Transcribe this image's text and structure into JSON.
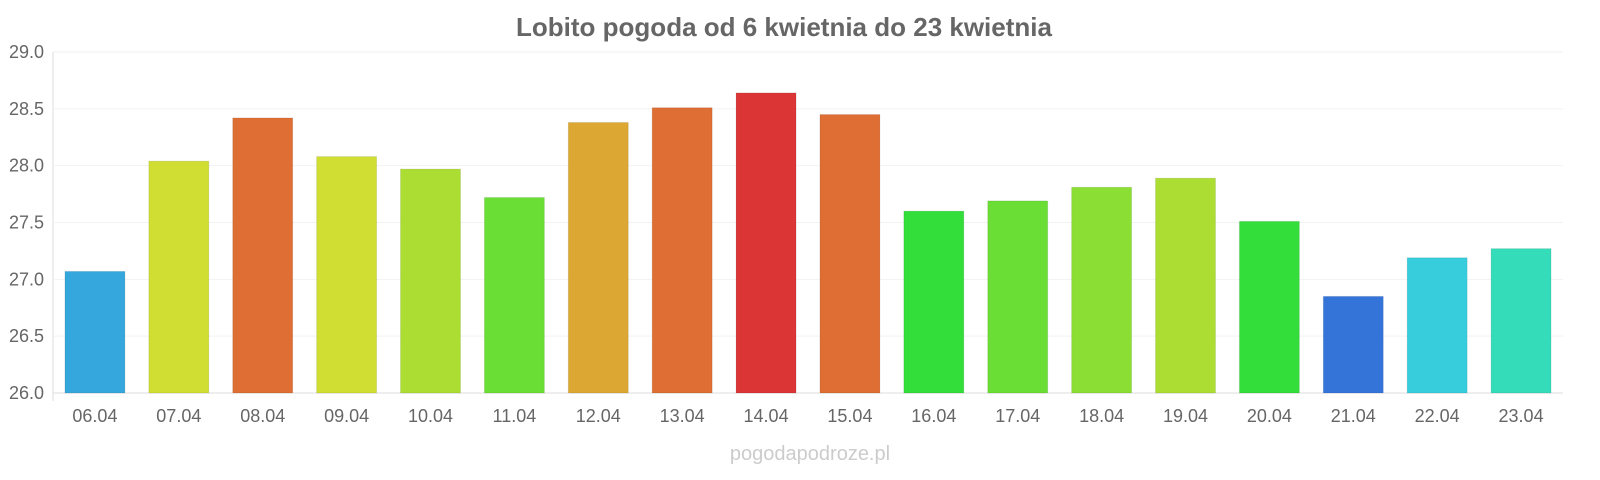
{
  "chart_data": {
    "type": "bar",
    "title": "Lobito pogoda od 6 kwietnia do 23 kwietnia",
    "xlabel": "",
    "ylabel": "",
    "ylim": [
      26.0,
      29.0
    ],
    "yticks": [
      "26.0",
      "26.5",
      "27.0",
      "27.5",
      "28.0",
      "28.5",
      "29.0"
    ],
    "grid": true,
    "categories": [
      "06.04",
      "07.04",
      "08.04",
      "09.04",
      "10.04",
      "11.04",
      "12.04",
      "13.04",
      "14.04",
      "15.04",
      "16.04",
      "17.04",
      "18.04",
      "19.04",
      "20.04",
      "21.04",
      "22.04",
      "23.04"
    ],
    "values": [
      27.07,
      28.04,
      28.42,
      28.08,
      27.97,
      27.72,
      28.38,
      28.51,
      28.64,
      28.45,
      27.6,
      27.69,
      27.81,
      27.89,
      27.51,
      26.85,
      27.19,
      27.27
    ],
    "colors": [
      "#36a7dc",
      "#d0dd32",
      "#de6e33",
      "#d0dd32",
      "#acdd32",
      "#6ade34",
      "#dca833",
      "#de6e33",
      "#db3535",
      "#de6e33",
      "#33dd3a",
      "#6ade34",
      "#8ade34",
      "#acdd32",
      "#33dd3a",
      "#3474d9",
      "#37cddc",
      "#34dcba"
    ]
  },
  "watermark": "pogodapodroze.pl"
}
